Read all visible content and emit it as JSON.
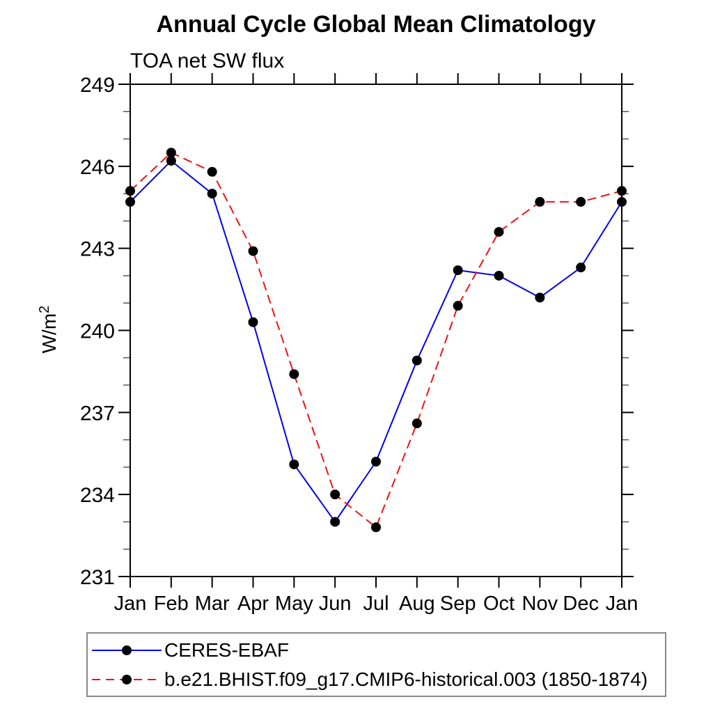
{
  "title": "Annual Cycle Global Mean Climatology",
  "subtitle": "TOA net SW flux",
  "ylabel": {
    "base": "W/m",
    "sup": "2"
  },
  "chart_data": {
    "type": "line",
    "title": "Annual Cycle Global Mean Climatology",
    "subtitle": "TOA net SW flux",
    "ylabel": "W/m2",
    "categories": [
      "Jan",
      "Feb",
      "Mar",
      "Apr",
      "May",
      "Jun",
      "Jul",
      "Aug",
      "Sep",
      "Oct",
      "Nov",
      "Dec",
      "Jan"
    ],
    "ylim": [
      231,
      249
    ],
    "yticks_major": [
      231,
      234,
      237,
      240,
      243,
      246,
      249
    ],
    "ytick_minor_step": 1,
    "grid": false,
    "legend_position": "bottom-left-box",
    "series": [
      {
        "name": "CERES-EBAF",
        "color": "#0000ee",
        "line_style": "solid",
        "dash": "",
        "marker": "circle",
        "marker_color": "#000000",
        "values": [
          244.7,
          246.2,
          245.0,
          240.3,
          235.1,
          233.0,
          235.2,
          238.9,
          242.2,
          242.0,
          241.2,
          242.3,
          244.7
        ]
      },
      {
        "name": "b.e21.BHIST.f09_g17.CMIP6-historical.003 (1850-1874)",
        "color": "#ee1111",
        "line_style": "dashed",
        "dash": "13 7",
        "marker": "circle",
        "marker_color": "#000000",
        "values": [
          245.1,
          246.5,
          245.8,
          242.9,
          238.4,
          234.0,
          232.8,
          236.6,
          240.9,
          243.6,
          244.7,
          244.7,
          245.1
        ]
      }
    ]
  }
}
